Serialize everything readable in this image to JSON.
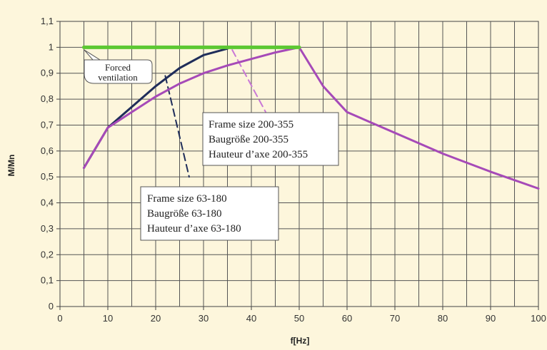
{
  "chart_data": {
    "type": "line",
    "xlabel": "f[Hz]",
    "ylabel": "M/Mn",
    "xlim": [
      0,
      100
    ],
    "ylim": [
      0,
      1.1
    ],
    "x_ticks": [
      "0",
      "10",
      "20",
      "30",
      "40",
      "50",
      "60",
      "70",
      "80",
      "90",
      "100"
    ],
    "y_ticks": [
      "0",
      "0,1",
      "0,2",
      "0,3",
      "0,4",
      "0,5",
      "0,6",
      "0,7",
      "0,8",
      "0,9",
      "1",
      "1,1"
    ],
    "grid": true,
    "series": [
      {
        "key": "forced",
        "color": "#5cc832",
        "x": [
          5,
          50
        ],
        "y": [
          1.0,
          1.0
        ]
      },
      {
        "key": "small",
        "color": "#1f2d5a",
        "x": [
          5,
          10,
          15,
          20,
          25,
          30,
          35
        ],
        "y": [
          0.535,
          0.69,
          0.77,
          0.85,
          0.92,
          0.97,
          0.995
        ]
      },
      {
        "key": "small_dashed",
        "color": "#1f2d5a",
        "dashed": true,
        "x": [
          22,
          27
        ],
        "y": [
          0.89,
          0.5
        ]
      },
      {
        "key": "large",
        "color": "#a64ab8",
        "x": [
          5,
          10,
          15,
          20,
          25,
          30,
          35,
          40,
          45,
          50,
          55,
          60,
          70,
          80,
          90,
          100
        ],
        "y": [
          0.535,
          0.69,
          0.75,
          0.81,
          0.86,
          0.9,
          0.93,
          0.955,
          0.98,
          1.0,
          0.85,
          0.75,
          0.67,
          0.59,
          0.52,
          0.455
        ]
      },
      {
        "key": "large_dashed",
        "color": "#c978d6",
        "dashed": true,
        "x": [
          36,
          43
        ],
        "y": [
          0.99,
          0.75
        ]
      }
    ],
    "annotations": [
      {
        "key": "forced_ventilation",
        "lines": [
          "Forced",
          "ventilation"
        ]
      },
      {
        "key": "frame_200_355",
        "lines": [
          "Frame size 200-355",
          "Baugröße 200-355",
          "Hauteur d’axe 200-355"
        ]
      },
      {
        "key": "frame_63_180",
        "lines": [
          "Frame size 63-180",
          "Baugröße 63-180",
          "Hauteur d’axe 63-180"
        ]
      }
    ]
  }
}
